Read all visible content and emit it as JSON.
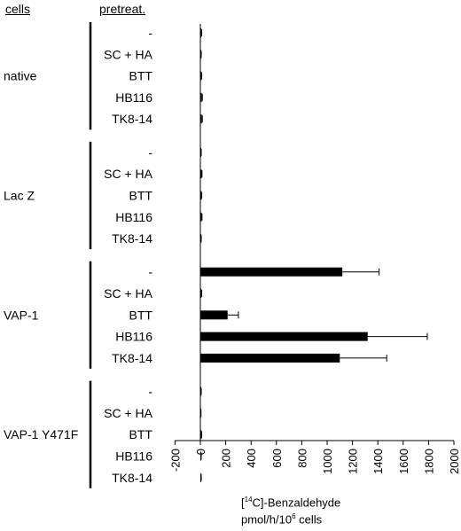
{
  "headers": {
    "cells": "cells",
    "pretreat": "pretreat."
  },
  "xlabel": {
    "line1_pre": "[",
    "line1_sup": "14",
    "line1_post": "C]-Benzaldehyde",
    "line2_pre": "pmol/h/10",
    "line2_sup": "6",
    "line2_post": " cells"
  },
  "chart_data": {
    "type": "bar",
    "orientation": "horizontal",
    "xlim": [
      -200,
      2000
    ],
    "xticks": [
      "-200",
      "0",
      "200",
      "400",
      "600",
      "800",
      "1000",
      "1200",
      "1400",
      "1600",
      "1800",
      "2000"
    ],
    "groups": [
      {
        "name": "native",
        "items": [
          {
            "label": "-",
            "value": 8,
            "error": 3
          },
          {
            "label": "SC + HA",
            "value": 5,
            "error": 2
          },
          {
            "label": "BTT",
            "value": 8,
            "error": 3
          },
          {
            "label": "HB116",
            "value": 12,
            "error": 4
          },
          {
            "label": "TK8-14",
            "value": 12,
            "error": 4
          }
        ]
      },
      {
        "name": "Lac Z",
        "items": [
          {
            "label": "-",
            "value": 5,
            "error": 2
          },
          {
            "label": "SC + HA",
            "value": 10,
            "error": 3
          },
          {
            "label": "BTT",
            "value": 8,
            "error": 3
          },
          {
            "label": "HB116",
            "value": 10,
            "error": 3
          },
          {
            "label": "TK8-14",
            "value": 5,
            "error": 2
          }
        ]
      },
      {
        "name": "VAP-1",
        "items": [
          {
            "label": "-",
            "value": 1120,
            "error": 290
          },
          {
            "label": "SC + HA",
            "value": 8,
            "error": 3
          },
          {
            "label": "BTT",
            "value": 215,
            "error": 85
          },
          {
            "label": "HB116",
            "value": 1320,
            "error": 470
          },
          {
            "label": "TK8-14",
            "value": 1100,
            "error": 370
          }
        ]
      },
      {
        "name": "VAP-1 Y471F",
        "items": [
          {
            "label": "-",
            "value": 5,
            "error": 2
          },
          {
            "label": "SC + HA",
            "value": 3,
            "error": 2
          },
          {
            "label": "BTT",
            "value": 8,
            "error": 3
          },
          {
            "label": "HB116",
            "value": 5,
            "error": 2
          },
          {
            "label": "TK8-14",
            "value": 5,
            "error": 2
          }
        ]
      }
    ]
  }
}
